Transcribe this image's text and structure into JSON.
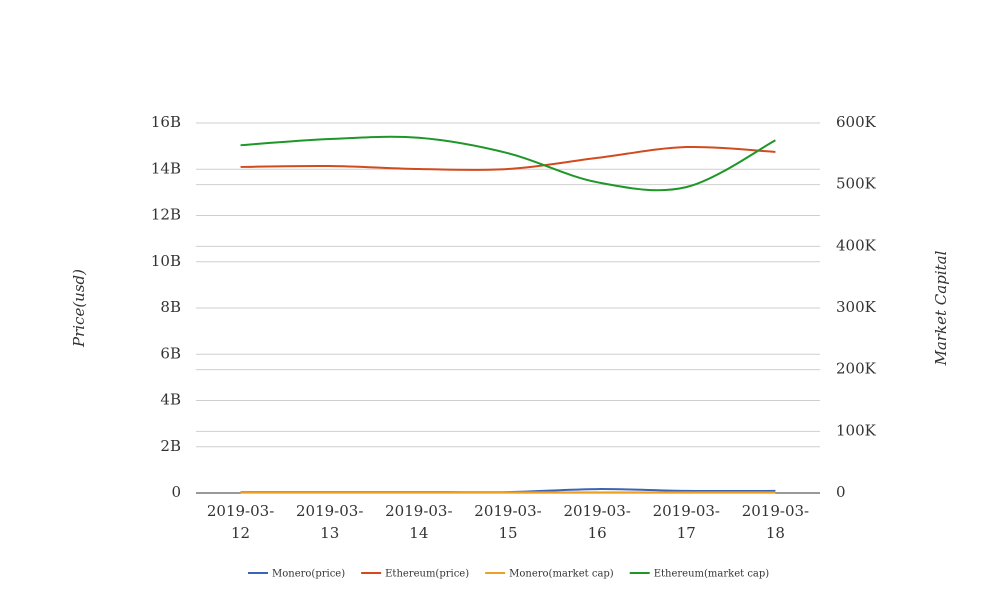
{
  "chart_data": {
    "type": "line",
    "y_label": "Price(usd)",
    "y2_label": "Market Capital",
    "categories": [
      "2019-03-12",
      "2019-03-13",
      "2019-03-14",
      "2019-03-15",
      "2019-03-16",
      "2019-03-17",
      "2019-03-18"
    ],
    "series": [
      {
        "name": "Monero(price)",
        "color": "#3c64b4",
        "values": [
          40000000,
          40000000,
          40000000,
          40000000,
          170000000,
          90000000,
          90000000
        ]
      },
      {
        "name": "Ethereum(price)",
        "color": "#d24a1e",
        "values": [
          14100000000,
          14140000000,
          14010000000,
          14010000000,
          14490000000,
          14960000000,
          14750000000
        ]
      },
      {
        "name": "Monero(market cap)",
        "color": "#f0a020",
        "axis": "y2",
        "values": [
          1000,
          1000,
          1000,
          1000,
          1000,
          1000,
          1000
        ]
      },
      {
        "name": "Ethereum(market cap)",
        "color": "#1e9628",
        "axis": "y2",
        "values": [
          564000,
          574000,
          576000,
          551000,
          504000,
          496000,
          572000
        ]
      }
    ],
    "ylim": [
      0,
      16000000000
    ],
    "yticks": [
      0,
      {
        "value": 2000000000,
        "label": "2B"
      },
      {
        "value": 4000000000,
        "label": "4B"
      },
      {
        "value": 6000000000,
        "label": "6B"
      },
      {
        "value": 8000000000,
        "label": "8B"
      },
      {
        "value": 10000000000,
        "label": "10B"
      },
      {
        "value": 12000000000,
        "label": "12B"
      },
      {
        "value": 14000000000,
        "label": "14B"
      },
      {
        "value": 16000000000,
        "label": "16B"
      }
    ],
    "y2lim": [
      0,
      600000
    ],
    "y2ticks": [
      0,
      {
        "value": 100000,
        "label": "100K"
      },
      {
        "value": 200000,
        "label": "200K"
      },
      {
        "value": 300000,
        "label": "300K"
      },
      {
        "value": 400000,
        "label": "400K"
      },
      {
        "value": 500000,
        "label": "500K"
      },
      {
        "value": 600000,
        "label": "600K"
      }
    ],
    "grid": true,
    "legend": "bottom"
  }
}
